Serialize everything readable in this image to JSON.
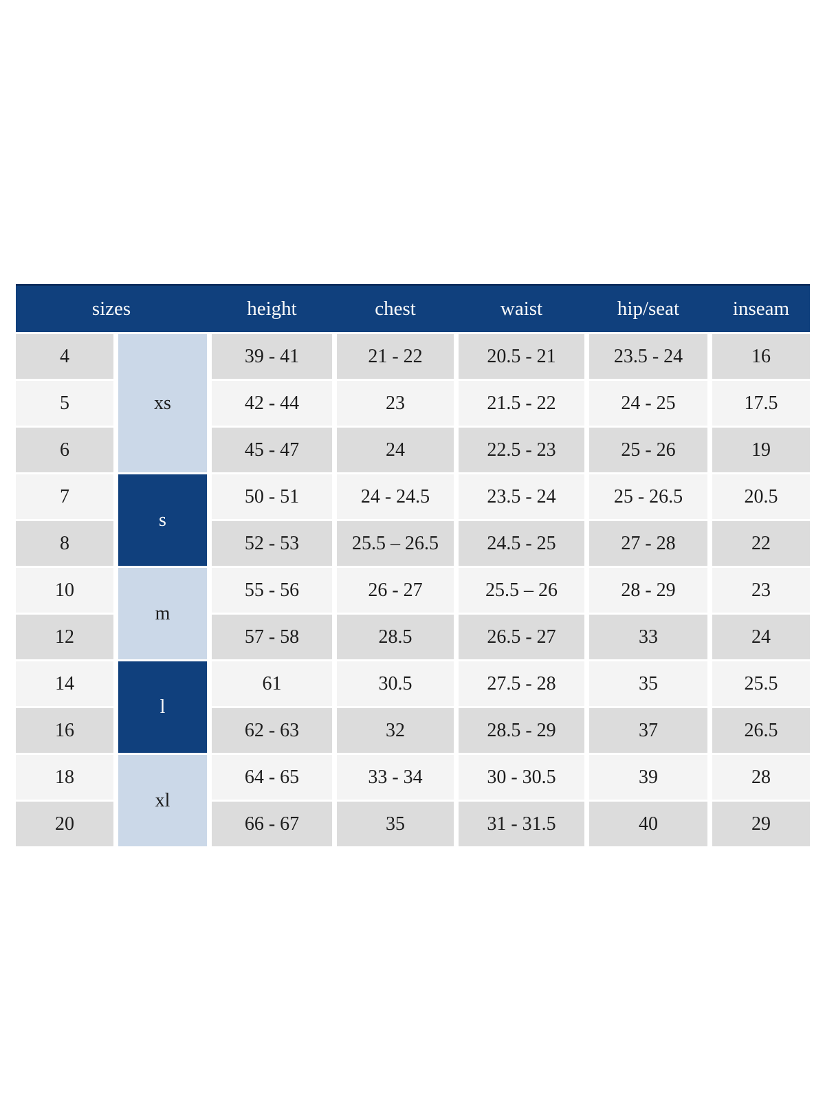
{
  "page": {
    "background": "#ffffff"
  },
  "table": {
    "columns": [
      "sizes",
      "height",
      "chest",
      "waist",
      "hip/seat",
      "inseam"
    ],
    "colors": {
      "header_navy": "#10407d",
      "header_navy_dark": "#0c2f5f",
      "header_text": "#fafafa",
      "group_light_blue": "#cbd8e8",
      "row_gray": "#dcdcdc",
      "row_light": "#f4f4f4",
      "body_text": "#1c1c1c"
    },
    "groups": [
      {
        "label": "xs",
        "tone": "light",
        "row_span": 3
      },
      {
        "label": "s",
        "tone": "dark",
        "row_span": 2
      },
      {
        "label": "m",
        "tone": "light",
        "row_span": 2
      },
      {
        "label": "l",
        "tone": "dark",
        "row_span": 2
      },
      {
        "label": "xl",
        "tone": "light",
        "row_span": 2
      }
    ],
    "rows": [
      {
        "size": "4",
        "height": "39 - 41",
        "chest": "21 - 22",
        "waist": "20.5 - 21",
        "hip_seat": "23.5 - 24",
        "inseam": "16"
      },
      {
        "size": "5",
        "height": "42 - 44",
        "chest": "23",
        "waist": "21.5 - 22",
        "hip_seat": "24 - 25",
        "inseam": "17.5"
      },
      {
        "size": "6",
        "height": "45 - 47",
        "chest": "24",
        "waist": "22.5 - 23",
        "hip_seat": "25 - 26",
        "inseam": "19"
      },
      {
        "size": "7",
        "height": "50 - 51",
        "chest": "24 - 24.5",
        "waist": "23.5 - 24",
        "hip_seat": "25 - 26.5",
        "inseam": "20.5"
      },
      {
        "size": "8",
        "height": "52 - 53",
        "chest": "25.5 – 26.5",
        "waist": "24.5 - 25",
        "hip_seat": "27 - 28",
        "inseam": "22"
      },
      {
        "size": "10",
        "height": "55 - 56",
        "chest": "26 - 27",
        "waist": "25.5 – 26",
        "hip_seat": "28 - 29",
        "inseam": "23"
      },
      {
        "size": "12",
        "height": "57 - 58",
        "chest": "28.5",
        "waist": "26.5 - 27",
        "hip_seat": "33",
        "inseam": "24"
      },
      {
        "size": "14",
        "height": "61",
        "chest": "30.5",
        "waist": "27.5 - 28",
        "hip_seat": "35",
        "inseam": "25.5"
      },
      {
        "size": "16",
        "height": "62 - 63",
        "chest": "32",
        "waist": "28.5 - 29",
        "hip_seat": "37",
        "inseam": "26.5"
      },
      {
        "size": "18",
        "height": "64 - 65",
        "chest": "33 - 34",
        "waist": "30 - 30.5",
        "hip_seat": "39",
        "inseam": "28"
      },
      {
        "size": "20",
        "height": "66 - 67",
        "chest": "35",
        "waist": "31 - 31.5",
        "hip_seat": "40",
        "inseam": "29"
      }
    ]
  }
}
